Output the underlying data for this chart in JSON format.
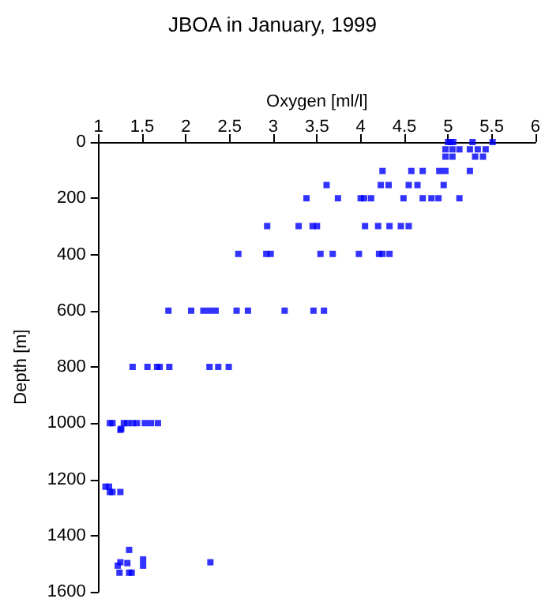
{
  "chart_data": {
    "type": "scatter",
    "title": "JBOA in January, 1999",
    "xlabel": "Oxygen [ml/l]",
    "ylabel": "Depth [m]",
    "x": [
      5.0,
      5.03,
      5.06,
      5.28,
      5.51,
      4.97,
      5.05,
      5.13,
      5.25,
      5.34,
      5.43,
      4.97,
      5.05,
      5.31,
      5.4,
      4.25,
      4.58,
      4.71,
      4.9,
      4.97,
      5.25,
      3.61,
      4.23,
      4.32,
      4.55,
      4.65,
      4.95,
      3.38,
      3.74,
      4.0,
      4.04,
      4.12,
      4.49,
      4.71,
      4.81,
      4.89,
      5.13,
      2.93,
      3.29,
      3.45,
      3.5,
      4.05,
      4.2,
      4.33,
      4.46,
      4.55,
      2.6,
      2.92,
      2.97,
      3.54,
      3.68,
      3.98,
      4.21,
      4.25,
      4.33,
      1.8,
      2.06,
      2.2,
      2.27,
      2.34,
      2.58,
      2.71,
      3.13,
      3.46,
      3.58,
      1.39,
      1.56,
      1.67,
      1.7,
      1.81,
      2.27,
      2.37,
      2.49,
      1.13,
      1.16,
      1.26,
      1.29,
      1.33,
      1.39,
      1.44,
      1.53,
      1.6,
      1.68,
      1.25,
      1.08,
      1.12,
      1.13,
      1.16,
      1.25,
      1.35,
      1.51,
      1.33,
      2.28,
      1.22,
      1.51,
      1.24,
      1.35,
      1.38,
      1.25
    ],
    "values": [
      0,
      0,
      0,
      0,
      0,
      26,
      26,
      26,
      26,
      26,
      26,
      52,
      52,
      52,
      52,
      103,
      103,
      103,
      103,
      103,
      103,
      153,
      153,
      153,
      153,
      153,
      153,
      200,
      200,
      200,
      200,
      200,
      200,
      200,
      200,
      200,
      200,
      299,
      299,
      299,
      299,
      299,
      299,
      299,
      299,
      299,
      398,
      398,
      398,
      398,
      398,
      398,
      398,
      398,
      398,
      600,
      600,
      600,
      600,
      600,
      600,
      600,
      600,
      600,
      600,
      800,
      800,
      800,
      800,
      800,
      800,
      800,
      800,
      1000,
      1000,
      1020,
      1000,
      1000,
      1000,
      1000,
      1000,
      1000,
      1000,
      1024,
      1226,
      1226,
      1245,
      1245,
      1245,
      1451,
      1485,
      1498,
      1495,
      1507,
      1507,
      1532,
      1532,
      1532,
      1495
    ],
    "color": "#0000ff",
    "marker": "square",
    "xlim": [
      1,
      6
    ],
    "xticks": [
      1,
      1.5,
      2,
      2.5,
      3,
      3.5,
      4,
      4.5,
      5,
      5.5,
      6
    ],
    "ylim": [
      1600,
      0
    ],
    "yticks": [
      0,
      200,
      400,
      600,
      800,
      1000,
      1200,
      1400,
      1600
    ],
    "grid": false
  }
}
